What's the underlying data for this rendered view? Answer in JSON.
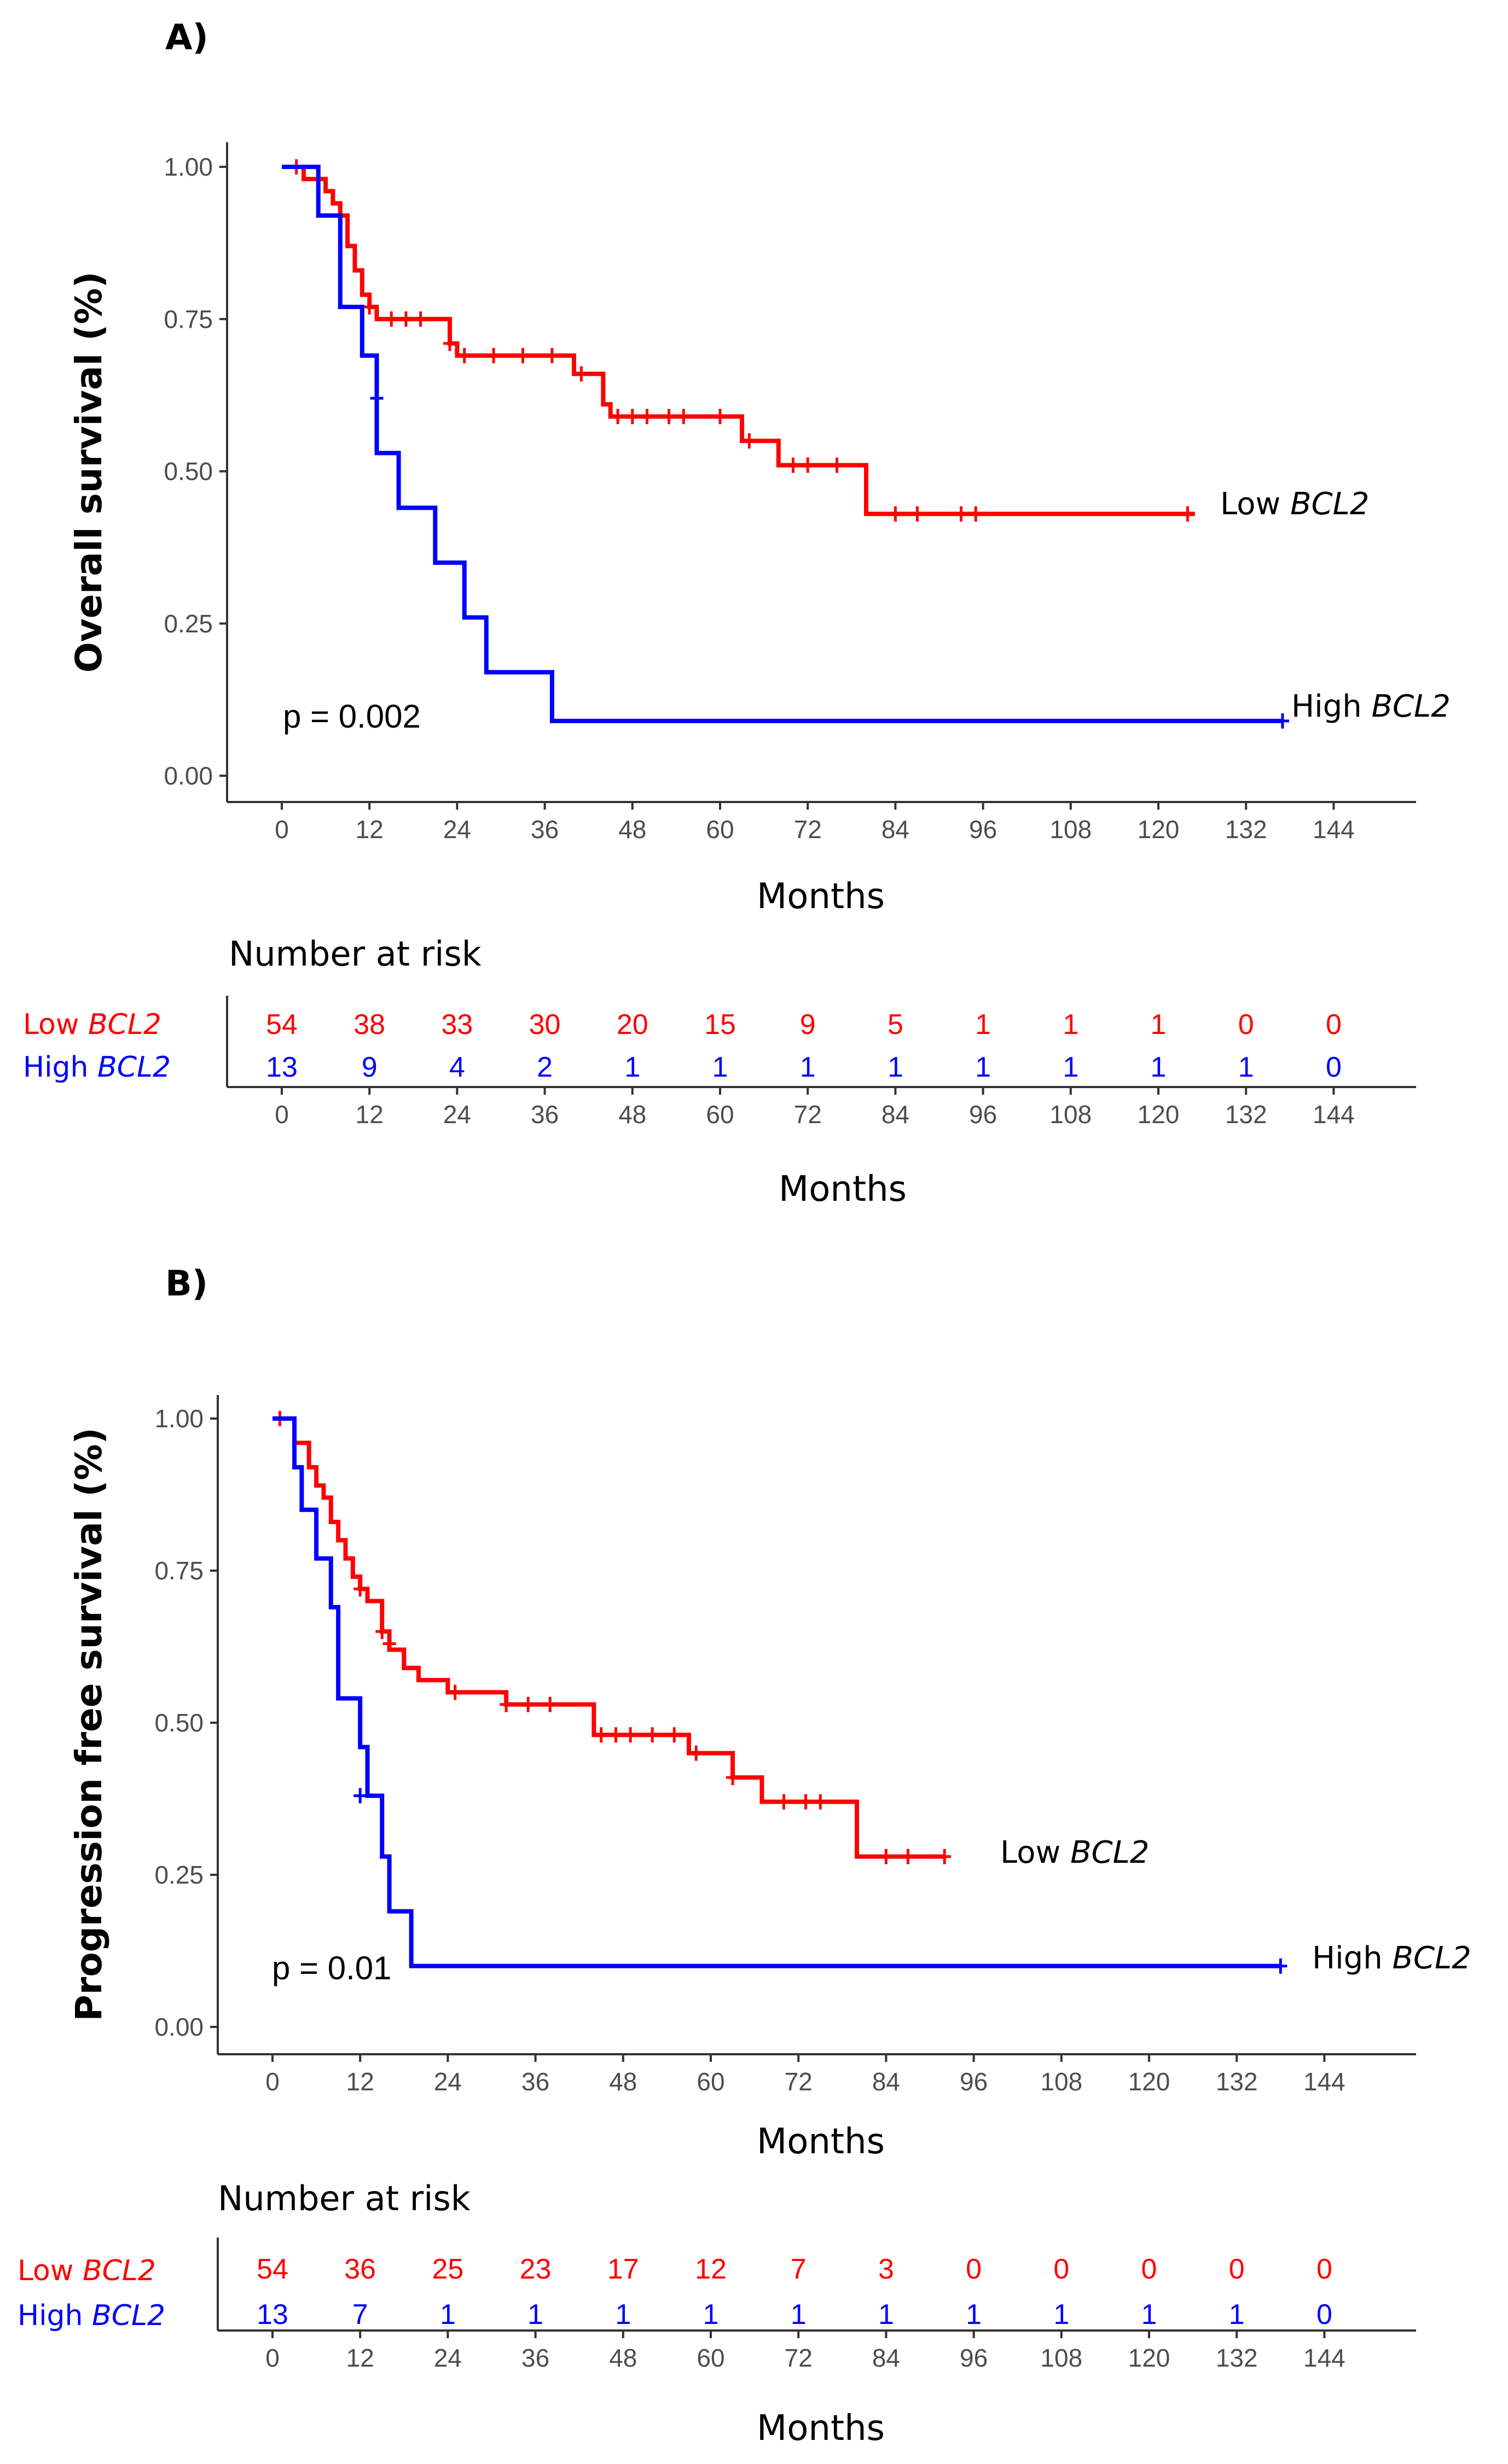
{
  "colors": {
    "low": "#ff0000",
    "high": "#0000ff",
    "axis": "#333333"
  },
  "chart_data": [
    {
      "type": "line",
      "subtype": "kaplan-meier",
      "panel_label": "A)",
      "xlabel": "Months",
      "ylabel": "Overall survival (%)",
      "xticks": [
        0,
        12,
        24,
        36,
        48,
        60,
        72,
        84,
        96,
        108,
        120,
        132,
        144
      ],
      "yticks": [
        "0.00",
        "0.25",
        "0.50",
        "0.75",
        "1.00"
      ],
      "xlim": [
        -8,
        156
      ],
      "ylim": [
        0,
        1
      ],
      "p_value_text": "p = 0.002",
      "series": [
        {
          "key": "low",
          "name": "Low",
          "gene": "BCL2",
          "steps": [
            [
              0,
              1.0
            ],
            [
              3,
              0.98
            ],
            [
              6,
              0.96
            ],
            [
              7,
              0.94
            ],
            [
              8,
              0.92
            ],
            [
              9,
              0.87
            ],
            [
              10,
              0.83
            ],
            [
              11,
              0.79
            ],
            [
              12,
              0.77
            ],
            [
              13,
              0.75
            ],
            [
              23,
              0.71
            ],
            [
              24,
              0.69
            ],
            [
              40,
              0.66
            ],
            [
              44,
              0.61
            ],
            [
              45,
              0.59
            ],
            [
              63,
              0.55
            ],
            [
              68,
              0.51
            ],
            [
              80,
              0.43
            ],
            [
              125,
              0.43
            ]
          ],
          "censored": [
            [
              2,
              1.0
            ],
            [
              12,
              0.77
            ],
            [
              15,
              0.75
            ],
            [
              17,
              0.75
            ],
            [
              19,
              0.75
            ],
            [
              23,
              0.71
            ],
            [
              25,
              0.69
            ],
            [
              29,
              0.69
            ],
            [
              33,
              0.69
            ],
            [
              37,
              0.69
            ],
            [
              41,
              0.66
            ],
            [
              46,
              0.59
            ],
            [
              48,
              0.59
            ],
            [
              50,
              0.59
            ],
            [
              53,
              0.59
            ],
            [
              55,
              0.59
            ],
            [
              60,
              0.59
            ],
            [
              64,
              0.55
            ],
            [
              70,
              0.51
            ],
            [
              72,
              0.51
            ],
            [
              76,
              0.51
            ],
            [
              84,
              0.43
            ],
            [
              87,
              0.43
            ],
            [
              93,
              0.43
            ],
            [
              95,
              0.43
            ],
            [
              124,
              0.43
            ]
          ]
        },
        {
          "key": "high",
          "name": "High",
          "gene": "BCL2",
          "steps": [
            [
              0,
              1.0
            ],
            [
              5,
              0.92
            ],
            [
              8,
              0.77
            ],
            [
              11,
              0.69
            ],
            [
              13,
              0.53
            ],
            [
              16,
              0.44
            ],
            [
              21,
              0.35
            ],
            [
              25,
              0.26
            ],
            [
              28,
              0.17
            ],
            [
              37,
              0.09
            ],
            [
              137,
              0.09
            ]
          ],
          "censored": [
            [
              13,
              0.62
            ],
            [
              137,
              0.09
            ]
          ]
        }
      ],
      "risk_table": {
        "title": "Number at risk",
        "xlabel": "Months",
        "rows": [
          {
            "key": "low",
            "name": "Low ",
            "gene": "BCL2",
            "values": [
              "54",
              "38",
              "33",
              "30",
              "20",
              "15",
              "9",
              "5",
              "1",
              "1",
              "1",
              "0",
              "0"
            ]
          },
          {
            "key": "high",
            "name": "High ",
            "gene": "BCL2",
            "values": [
              "13",
              "9",
              "4",
              "2",
              "1",
              "1",
              "1",
              "1",
              "1",
              "1",
              "1",
              "1",
              "0"
            ]
          }
        ]
      }
    },
    {
      "type": "line",
      "subtype": "kaplan-meier",
      "panel_label": "B)",
      "xlabel": "Months",
      "ylabel": "Progression free survival (%)",
      "xticks": [
        0,
        12,
        24,
        36,
        48,
        60,
        72,
        84,
        96,
        108,
        120,
        132,
        144
      ],
      "yticks": [
        "0.00",
        "0.25",
        "0.50",
        "0.75",
        "1.00"
      ],
      "xlim": [
        -8,
        156
      ],
      "ylim": [
        0,
        1
      ],
      "p_value_text": "p = 0.01",
      "series": [
        {
          "key": "low",
          "name": "Low",
          "gene": "BCL2",
          "steps": [
            [
              0,
              1.0
            ],
            [
              3,
              0.96
            ],
            [
              5,
              0.92
            ],
            [
              6,
              0.89
            ],
            [
              7,
              0.87
            ],
            [
              8,
              0.83
            ],
            [
              9,
              0.8
            ],
            [
              10,
              0.77
            ],
            [
              11,
              0.74
            ],
            [
              12,
              0.72
            ],
            [
              13,
              0.7
            ],
            [
              15,
              0.65
            ],
            [
              16,
              0.62
            ],
            [
              18,
              0.59
            ],
            [
              20,
              0.57
            ],
            [
              24,
              0.55
            ],
            [
              32,
              0.53
            ],
            [
              44,
              0.48
            ],
            [
              57,
              0.45
            ],
            [
              63,
              0.41
            ],
            [
              67,
              0.37
            ],
            [
              80,
              0.28
            ],
            [
              92,
              0.28
            ]
          ],
          "censored": [
            [
              1,
              1.0
            ],
            [
              12,
              0.72
            ],
            [
              15,
              0.65
            ],
            [
              16,
              0.63
            ],
            [
              25,
              0.55
            ],
            [
              32,
              0.53
            ],
            [
              35,
              0.53
            ],
            [
              38,
              0.53
            ],
            [
              45,
              0.48
            ],
            [
              47,
              0.48
            ],
            [
              49,
              0.48
            ],
            [
              52,
              0.48
            ],
            [
              55,
              0.48
            ],
            [
              58,
              0.45
            ],
            [
              63,
              0.41
            ],
            [
              70,
              0.37
            ],
            [
              73,
              0.37
            ],
            [
              75,
              0.37
            ],
            [
              84,
              0.28
            ],
            [
              87,
              0.28
            ],
            [
              92,
              0.28
            ]
          ]
        },
        {
          "key": "high",
          "name": "High",
          "gene": "BCL2",
          "steps": [
            [
              0,
              1.0
            ],
            [
              3,
              0.92
            ],
            [
              4,
              0.85
            ],
            [
              6,
              0.77
            ],
            [
              8,
              0.69
            ],
            [
              9,
              0.54
            ],
            [
              12,
              0.46
            ],
            [
              13,
              0.38
            ],
            [
              15,
              0.28
            ],
            [
              16,
              0.19
            ],
            [
              19,
              0.1
            ],
            [
              138,
              0.1
            ]
          ],
          "censored": [
            [
              12,
              0.38
            ],
            [
              138,
              0.1
            ]
          ]
        }
      ],
      "risk_table": {
        "title": "Number at risk",
        "xlabel": "Months",
        "rows": [
          {
            "key": "low",
            "name": "Low ",
            "gene": "BCL2",
            "values": [
              "54",
              "36",
              "25",
              "23",
              "17",
              "12",
              "7",
              "3",
              "0",
              "0",
              "0",
              "0",
              "0"
            ]
          },
          {
            "key": "high",
            "name": "High ",
            "gene": "BCL2",
            "values": [
              "13",
              "7",
              "1",
              "1",
              "1",
              "1",
              "1",
              "1",
              "1",
              "1",
              "1",
              "1",
              "0"
            ]
          }
        ]
      }
    }
  ]
}
